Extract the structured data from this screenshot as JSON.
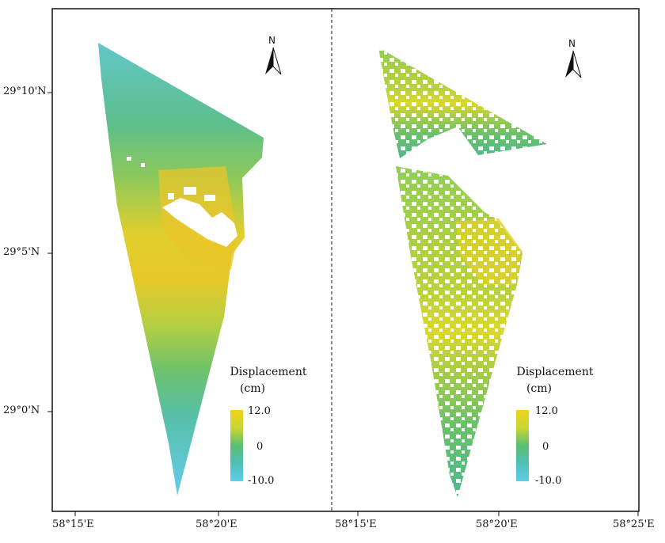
{
  "panels": [
    {
      "id": "left",
      "north_label": "N",
      "legend": {
        "title_line1": "Displacement",
        "title_line2": "(cm)",
        "max_label": "12.0",
        "mid_label": "0",
        "min_label": "-10.0",
        "colors": [
          "#f2d21a",
          "#d8dc2e",
          "#9ccc52",
          "#5bbf72",
          "#4fc0b8",
          "#5fcde9"
        ]
      }
    },
    {
      "id": "right",
      "north_label": "N",
      "legend": {
        "title_line1": "Displacement",
        "title_line2": "(cm)",
        "max_label": "12.0",
        "mid_label": "0",
        "min_label": "-10.0",
        "colors": [
          "#f2d21a",
          "#d8dc2e",
          "#9ccc52",
          "#5bbf72",
          "#4fc0b8",
          "#5fcde9"
        ]
      }
    }
  ],
  "lat_ticks": [
    "29°10'N",
    "29°5'N",
    "29°0'N"
  ],
  "lon_ticks": [
    "58°15'E",
    "58°20'E",
    "58°15'E",
    "58°20'E",
    "58°25'E"
  ]
}
